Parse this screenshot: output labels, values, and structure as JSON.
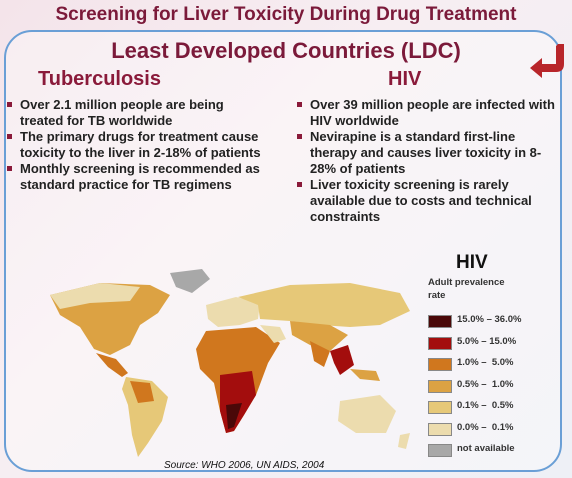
{
  "header": {
    "title": "Screening for Liver Toxicity During Drug Treatment"
  },
  "subtitle": "Least Developed Countries (LDC)",
  "columns": [
    {
      "heading": "Tuberculosis",
      "bullets": [
        "Over 2.1 million people are being treated for TB worldwide",
        "The primary drugs for treatment cause toxicity  to the liver in 2-18% of patients",
        "Monthly screening is recommended as standard practice for TB regimens"
      ]
    },
    {
      "heading": "HIV",
      "bullets": [
        "Over 39 million people are infected with HIV worldwide",
        "Nevirapine is a standard first-line therapy and causes liver toxicity in 8-28% of patients",
        "Liver toxicity screening is rarely available due to costs and technical constraints"
      ]
    }
  ],
  "legend": {
    "title": "HIV",
    "caption": "Adult prevalence rate",
    "items": [
      {
        "label": "15.0% – 36.0%",
        "color": "#4a0808"
      },
      {
        "label": "5.0% – 15.0%",
        "color": "#a30d0d"
      },
      {
        "label": "1.0% –  5.0%",
        "color": "#d0771e"
      },
      {
        "label": "0.5% –  1.0%",
        "color": "#dca243"
      },
      {
        "label": "0.1% –  0.5%",
        "color": "#e6c878"
      },
      {
        "label": "0.0% –  0.1%",
        "color": "#ecdcae"
      },
      {
        "label": "not available",
        "color": "#a8a8a8"
      }
    ]
  },
  "source": "Source: WHO 2006, UN AIDS, 2004"
}
